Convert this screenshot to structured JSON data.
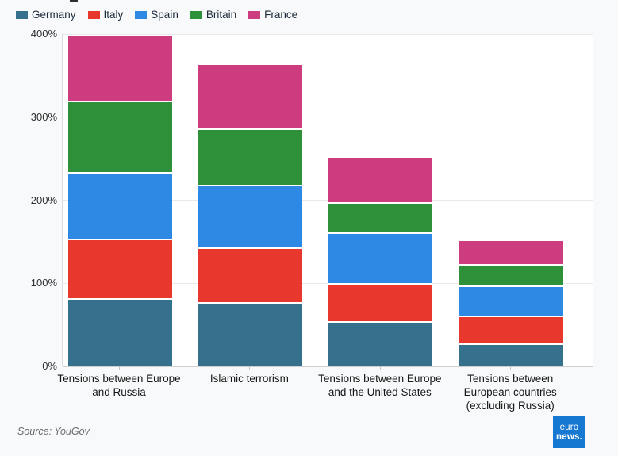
{
  "chart_data": {
    "type": "bar",
    "stacked": true,
    "categories": [
      "Tensions between Europe and Russia",
      "Islamic terrorism",
      "Tensions between Europe and the United States",
      "Tensions between European countries (excluding Russia)"
    ],
    "series": [
      {
        "name": "Germany",
        "color": "#35718d",
        "values": [
          82,
          77,
          54,
          28
        ]
      },
      {
        "name": "Italy",
        "color": "#e8382d",
        "values": [
          72,
          66,
          46,
          33
        ]
      },
      {
        "name": "Spain",
        "color": "#2e89e5",
        "values": [
          80,
          76,
          61,
          36
        ]
      },
      {
        "name": "Britain",
        "color": "#2e9139",
        "values": [
          86,
          67,
          37,
          26
        ]
      },
      {
        "name": "France",
        "color": "#cc3c7e",
        "values": [
          77,
          77,
          53,
          28
        ]
      }
    ],
    "stack_totals": [
      397,
      363,
      251,
      151
    ],
    "ylim": [
      0,
      400
    ],
    "yticks": [
      {
        "value": 0,
        "label": "0%"
      },
      {
        "value": 100,
        "label": "100%"
      },
      {
        "value": 200,
        "label": "200%"
      },
      {
        "value": 300,
        "label": "300%"
      },
      {
        "value": 400,
        "label": "400%"
      }
    ],
    "grid": true,
    "legend_position": "top-left"
  },
  "footer": {
    "source": "Source: YouGov",
    "logo": {
      "line1": "euro",
      "line2": "news.",
      "color": "#1778d2"
    }
  }
}
